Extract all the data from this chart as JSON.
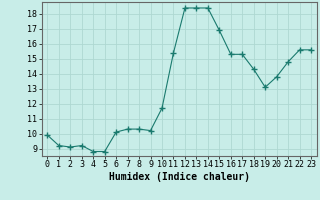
{
  "x": [
    0,
    1,
    2,
    3,
    4,
    5,
    6,
    7,
    8,
    9,
    10,
    11,
    12,
    13,
    14,
    15,
    16,
    17,
    18,
    19,
    20,
    21,
    22,
    23
  ],
  "y": [
    9.9,
    9.2,
    9.1,
    9.2,
    8.8,
    8.8,
    10.1,
    10.3,
    10.3,
    10.2,
    11.7,
    15.4,
    18.4,
    18.4,
    18.4,
    16.9,
    15.3,
    15.3,
    14.3,
    13.1,
    13.8,
    14.8,
    15.6,
    15.6
  ],
  "line_color": "#1a7a6e",
  "marker": "+",
  "marker_size": 4,
  "bg_color": "#c8ede8",
  "grid_color": "#aed8d2",
  "xlabel": "Humidex (Indice chaleur)",
  "ylim": [
    8.5,
    18.8
  ],
  "xlim": [
    -0.5,
    23.5
  ],
  "yticks": [
    9,
    10,
    11,
    12,
    13,
    14,
    15,
    16,
    17,
    18
  ],
  "xtick_labels": [
    "0",
    "1",
    "2",
    "3",
    "4",
    "5",
    "6",
    "7",
    "8",
    "9",
    "10",
    "11",
    "12",
    "13",
    "14",
    "15",
    "16",
    "17",
    "18",
    "19",
    "20",
    "21",
    "22",
    "23"
  ],
  "font_size": 6,
  "xlabel_fontsize": 7
}
